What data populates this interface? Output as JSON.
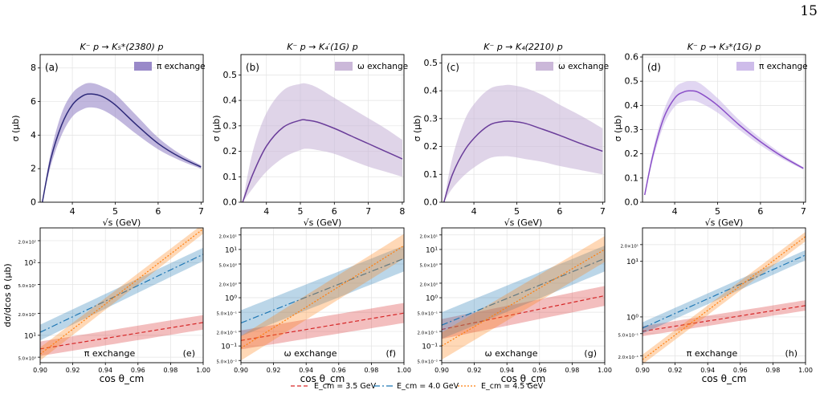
{
  "page_number": "15",
  "chart_data": [
    {
      "type": "line",
      "panel": "(a)",
      "title": "K⁻ p → K₅*(2380) p",
      "xlabel": "√s (GeV)",
      "ylabel": "σ (μb)",
      "xlim": [
        3.25,
        7.05
      ],
      "ylim": [
        0,
        8.8
      ],
      "xticks": [
        4,
        5,
        6,
        7
      ],
      "yticks": [
        0,
        2,
        4,
        6,
        8
      ],
      "grid": true,
      "legend": "top-right",
      "series": [
        {
          "name": "π exchange",
          "color": "#2e2a7a",
          "band_color": "#8e7cc3",
          "x": [
            3.3,
            3.5,
            3.75,
            4.0,
            4.25,
            4.45,
            4.7,
            5.0,
            5.5,
            6.0,
            6.5,
            7.0
          ],
          "y": [
            0.0,
            2.6,
            4.6,
            5.8,
            6.35,
            6.45,
            6.3,
            5.8,
            4.6,
            3.5,
            2.7,
            2.1
          ],
          "lower": [
            0.0,
            2.2,
            4.0,
            5.1,
            5.55,
            5.65,
            5.5,
            5.05,
            4.05,
            3.15,
            2.5,
            2.0
          ],
          "upper": [
            0.0,
            3.0,
            5.3,
            6.5,
            7.0,
            7.1,
            6.9,
            6.45,
            5.15,
            3.85,
            2.9,
            2.2
          ]
        }
      ]
    },
    {
      "type": "line",
      "panel": "(b)",
      "title": "K⁻ p → K₄′(1G) p",
      "xlabel": "√s (GeV)",
      "ylabel": "σ (μb)",
      "xlim": [
        3.25,
        8.05
      ],
      "ylim": [
        0,
        0.58
      ],
      "xticks": [
        4,
        5,
        6,
        7,
        8
      ],
      "yticks": [
        0.0,
        0.1,
        0.2,
        0.3,
        0.4,
        0.5
      ],
      "grid": true,
      "legend": "top-right",
      "series": [
        {
          "name": "ω exchange",
          "color": "#6a3d9a",
          "band_color": "#c5b0d5",
          "x": [
            3.3,
            3.6,
            4.0,
            4.5,
            5.0,
            5.2,
            5.5,
            6.0,
            6.5,
            7.0,
            7.5,
            8.0
          ],
          "y": [
            0.0,
            0.11,
            0.22,
            0.295,
            0.322,
            0.322,
            0.315,
            0.29,
            0.26,
            0.23,
            0.2,
            0.17
          ],
          "lower": [
            0.0,
            0.055,
            0.12,
            0.175,
            0.205,
            0.21,
            0.205,
            0.19,
            0.165,
            0.14,
            0.12,
            0.1
          ],
          "upper": [
            0.0,
            0.2,
            0.35,
            0.44,
            0.465,
            0.465,
            0.45,
            0.41,
            0.37,
            0.33,
            0.29,
            0.245
          ]
        }
      ]
    },
    {
      "type": "line",
      "panel": "(c)",
      "title": "K⁻ p → K₄(2210) p",
      "xlabel": "√s (GeV)",
      "ylabel": "σ (μb)",
      "xlim": [
        3.25,
        7.05
      ],
      "ylim": [
        0,
        0.53
      ],
      "xticks": [
        4,
        5,
        6,
        7
      ],
      "yticks": [
        0.0,
        0.1,
        0.2,
        0.3,
        0.4,
        0.5
      ],
      "grid": true,
      "legend": "top-right",
      "series": [
        {
          "name": "ω exchange",
          "color": "#6a3d9a",
          "band_color": "#c5b0d5",
          "x": [
            3.3,
            3.5,
            3.8,
            4.1,
            4.4,
            4.7,
            4.9,
            5.2,
            5.6,
            6.0,
            6.5,
            7.0
          ],
          "y": [
            0.0,
            0.1,
            0.19,
            0.245,
            0.28,
            0.29,
            0.29,
            0.283,
            0.262,
            0.24,
            0.21,
            0.183
          ],
          "lower": [
            0.0,
            0.05,
            0.1,
            0.135,
            0.16,
            0.165,
            0.163,
            0.155,
            0.145,
            0.13,
            0.115,
            0.1
          ],
          "upper": [
            0.0,
            0.16,
            0.3,
            0.37,
            0.41,
            0.42,
            0.42,
            0.41,
            0.385,
            0.35,
            0.31,
            0.265
          ]
        }
      ]
    },
    {
      "type": "line",
      "panel": "(d)",
      "title": "K⁻ p → K₃*(1G) p",
      "xlabel": "√s (GeV)",
      "ylabel": "σ (μb)",
      "xlim": [
        3.25,
        7.05
      ],
      "ylim": [
        0,
        0.61
      ],
      "xticks": [
        4,
        5,
        6,
        7
      ],
      "yticks": [
        0.0,
        0.1,
        0.2,
        0.3,
        0.4,
        0.5,
        0.6
      ],
      "grid": true,
      "legend": "top-right",
      "series": [
        {
          "name": "π exchange",
          "color": "#8a4fc8",
          "band_color": "#c9b5e8",
          "x": [
            3.3,
            3.5,
            3.75,
            4.0,
            4.2,
            4.4,
            4.6,
            5.0,
            5.5,
            6.0,
            6.5,
            7.0
          ],
          "y": [
            0.03,
            0.2,
            0.35,
            0.43,
            0.455,
            0.46,
            0.45,
            0.4,
            0.32,
            0.25,
            0.19,
            0.14
          ],
          "lower": [
            0.03,
            0.18,
            0.32,
            0.395,
            0.415,
            0.42,
            0.41,
            0.37,
            0.3,
            0.235,
            0.18,
            0.135
          ],
          "upper": [
            0.03,
            0.22,
            0.38,
            0.47,
            0.495,
            0.5,
            0.49,
            0.43,
            0.34,
            0.265,
            0.2,
            0.145
          ]
        }
      ]
    },
    {
      "type": "line",
      "panel": "(e)",
      "xlabel": "cos θ_cm",
      "ylabel": "dσ/dcos θ (μb)",
      "yscale": "log",
      "xlim": [
        0.9,
        1.0
      ],
      "ylim": [
        4.2,
        300
      ],
      "xticks": [
        "0.90",
        "0.92",
        "0.94",
        "0.96",
        "0.98",
        "1.00"
      ],
      "yticks": [
        {
          "value": 5,
          "label": "5.0×10⁰"
        },
        {
          "value": 10,
          "label": "10¹"
        },
        {
          "value": 20,
          "label": "2.0×10¹"
        },
        {
          "value": 50,
          "label": "5.0×10¹"
        },
        {
          "value": 100,
          "label": "10²"
        },
        {
          "value": 200,
          "label": "2.0×10²"
        }
      ],
      "exchange_label": "π exchange",
      "grid": true,
      "series": [
        {
          "name": "E_cm = 3.5 GeV",
          "color": "#d62728",
          "dash": "5,3",
          "x": [
            0.9,
            1.0
          ],
          "y": [
            6.5,
            15
          ],
          "lower": [
            5.2,
            12
          ],
          "upper": [
            8.2,
            19
          ]
        },
        {
          "name": "E_cm = 4.0 GeV",
          "color": "#1f77b4",
          "dash": "8,3,2,3",
          "x": [
            0.9,
            1.0
          ],
          "y": [
            11,
            130
          ],
          "lower": [
            8.5,
            105
          ],
          "upper": [
            14,
            160
          ]
        },
        {
          "name": "E_cm = 4.5 GeV",
          "color": "#ff7f0e",
          "dash": "2,2",
          "x": [
            0.9,
            1.0
          ],
          "y": [
            5.5,
            290
          ],
          "lower": [
            4.5,
            250
          ],
          "upper": [
            6.8,
            340
          ]
        }
      ]
    },
    {
      "type": "line",
      "panel": "(f)",
      "xlabel": "cos θ_cm",
      "ylabel": "",
      "yscale": "log",
      "xlim": [
        0.9,
        1.0
      ],
      "ylim": [
        0.045,
        28
      ],
      "xticks": [
        "0.90",
        "0.92",
        "0.94",
        "0.96",
        "0.98",
        "1.00"
      ],
      "yticks": [
        {
          "value": 0.05,
          "label": "5.0×10⁻²"
        },
        {
          "value": 0.1,
          "label": "10⁻¹"
        },
        {
          "value": 0.2,
          "label": "2.0×10⁻¹"
        },
        {
          "value": 0.5,
          "label": "5.0×10⁻¹"
        },
        {
          "value": 1,
          "label": "10⁰"
        },
        {
          "value": 2,
          "label": "2.0×10⁰"
        },
        {
          "value": 5,
          "label": "5.0×10⁰"
        },
        {
          "value": 10,
          "label": "10¹"
        },
        {
          "value": 20,
          "label": "2.0×10¹"
        }
      ],
      "exchange_label": "ω exchange",
      "grid": true,
      "series": [
        {
          "name": "E_cm = 3.5 GeV",
          "color": "#d62728",
          "dash": "5,3",
          "x": [
            0.9,
            1.0
          ],
          "y": [
            0.13,
            0.48
          ],
          "lower": [
            0.085,
            0.3
          ],
          "upper": [
            0.21,
            0.78
          ]
        },
        {
          "name": "E_cm = 4.0 GeV",
          "color": "#1f77b4",
          "dash": "8,3,2,3",
          "x": [
            0.9,
            1.0
          ],
          "y": [
            0.3,
            6.5
          ],
          "lower": [
            0.16,
            3.5
          ],
          "upper": [
            0.55,
            12
          ]
        },
        {
          "name": "E_cm = 4.5 GeV",
          "color": "#ff7f0e",
          "dash": "2,2",
          "x": [
            0.9,
            1.0
          ],
          "y": [
            0.09,
            12
          ],
          "lower": [
            0.05,
            6.5
          ],
          "upper": [
            0.16,
            21
          ]
        }
      ]
    },
    {
      "type": "line",
      "panel": "(g)",
      "xlabel": "cos θ_cm",
      "ylabel": "",
      "yscale": "log",
      "xlim": [
        0.9,
        1.0
      ],
      "ylim": [
        0.045,
        28
      ],
      "xticks": [
        "0.90",
        "0.92",
        "0.94",
        "0.96",
        "0.98",
        "1.00"
      ],
      "yticks": [
        {
          "value": 0.05,
          "label": "5.0×10⁻²"
        },
        {
          "value": 0.1,
          "label": "10⁻¹"
        },
        {
          "value": 0.2,
          "label": "2.0×10⁻¹"
        },
        {
          "value": 0.5,
          "label": "5.0×10⁻¹"
        },
        {
          "value": 1,
          "label": "10⁰"
        },
        {
          "value": 2,
          "label": "2.0×10⁰"
        },
        {
          "value": 5,
          "label": "5.0×10⁰"
        },
        {
          "value": 10,
          "label": "10¹"
        },
        {
          "value": 20,
          "label": "2.0×10¹"
        }
      ],
      "exchange_label": "ω exchange",
      "grid": true,
      "series": [
        {
          "name": "E_cm = 3.5 GeV",
          "color": "#d62728",
          "dash": "5,3",
          "x": [
            0.9,
            1.0
          ],
          "y": [
            0.22,
            1.1
          ],
          "lower": [
            0.14,
            0.68
          ],
          "upper": [
            0.36,
            1.75
          ]
        },
        {
          "name": "E_cm = 4.0 GeV",
          "color": "#1f77b4",
          "dash": "8,3,2,3",
          "x": [
            0.9,
            1.0
          ],
          "y": [
            0.27,
            6.5
          ],
          "lower": [
            0.14,
            3.5
          ],
          "upper": [
            0.5,
            12
          ]
        },
        {
          "name": "E_cm = 4.5 GeV",
          "color": "#ff7f0e",
          "dash": "2,2",
          "x": [
            0.9,
            1.0
          ],
          "y": [
            0.1,
            10
          ],
          "lower": [
            0.052,
            5.5
          ],
          "upper": [
            0.19,
            19
          ]
        }
      ]
    },
    {
      "type": "line",
      "panel": "(h)",
      "xlabel": "cos θ_cm",
      "ylabel": "",
      "yscale": "log",
      "xlim": [
        0.9,
        1.0
      ],
      "ylim": [
        0.15,
        40
      ],
      "xticks": [
        "0.90",
        "0.92",
        "0.94",
        "0.96",
        "0.98",
        "1.00"
      ],
      "yticks": [
        {
          "value": 0.2,
          "label": "2.0×10⁻¹"
        },
        {
          "value": 0.5,
          "label": "5.0×10⁻¹"
        },
        {
          "value": 1,
          "label": "10⁰"
        },
        {
          "value": 10,
          "label": "10¹"
        },
        {
          "value": 20,
          "label": "2.0×10¹"
        }
      ],
      "exchange_label": "π exchange",
      "grid": true,
      "series": [
        {
          "name": "E_cm = 3.5 GeV",
          "color": "#d62728",
          "dash": "5,3",
          "x": [
            0.9,
            1.0
          ],
          "y": [
            0.55,
            1.6
          ],
          "lower": [
            0.45,
            1.3
          ],
          "upper": [
            0.68,
            2.0
          ]
        },
        {
          "name": "E_cm = 4.0 GeV",
          "color": "#1f77b4",
          "dash": "8,3,2,3",
          "x": [
            0.9,
            1.0
          ],
          "y": [
            0.63,
            13
          ],
          "lower": [
            0.5,
            10.5
          ],
          "upper": [
            0.8,
            16
          ]
        },
        {
          "name": "E_cm = 4.5 GeV",
          "color": "#ff7f0e",
          "dash": "2,2",
          "x": [
            0.9,
            1.0
          ],
          "y": [
            0.17,
            28
          ],
          "lower": [
            0.14,
            23
          ],
          "upper": [
            0.21,
            34
          ]
        }
      ]
    }
  ],
  "bottom_legend": [
    {
      "label": "E_cm = 3.5 GeV",
      "color": "#d62728",
      "dash": "5,3"
    },
    {
      "label": "E_cm = 4.0 GeV",
      "color": "#1f77b4",
      "dash": "8,3,2,3"
    },
    {
      "label": "E_cm = 4.5 GeV",
      "color": "#ff7f0e",
      "dash": "2,2"
    }
  ]
}
